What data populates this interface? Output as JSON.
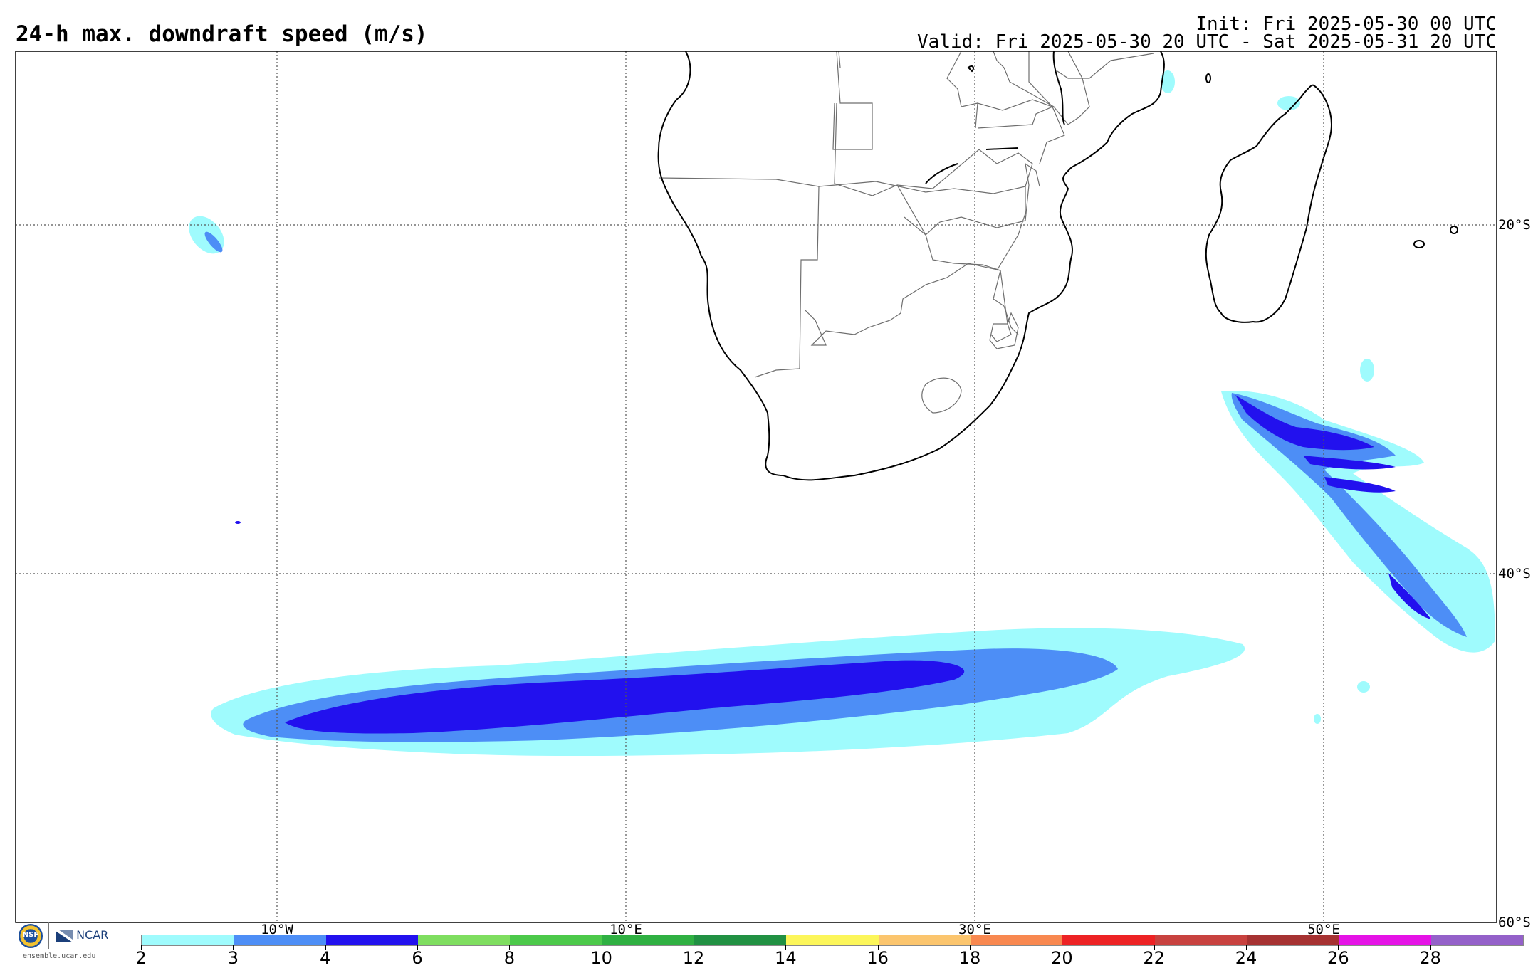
{
  "header": {
    "title": "24-h max. downdraft speed (m/s)",
    "init": "Init: Fri 2025-05-30 00 UTC",
    "valid": "Valid: Fri 2025-05-30 20 UTC - Sat 2025-05-31 20 UTC"
  },
  "map": {
    "lon_labels": [
      "10°W",
      "10°E",
      "30°E",
      "50°E"
    ],
    "lat_labels": [
      "20°S",
      "40°S",
      "60°S"
    ],
    "coast_color": "#000000",
    "border_color": "#6e6e6e",
    "grid_style": "dotted"
  },
  "legend": {
    "levels": [
      "2",
      "3",
      "4",
      "6",
      "8",
      "10",
      "12",
      "14",
      "16",
      "18",
      "20",
      "22",
      "24",
      "26",
      "28"
    ],
    "colors": [
      "#9ffbfd",
      "#4d8ef6",
      "#2211ee",
      "#7fde60",
      "#4cc94a",
      "#2fb042",
      "#219143",
      "#fcf65a",
      "#fbc56e",
      "#f88850",
      "#ed2224",
      "#c8423f",
      "#a63232",
      "#e513e6",
      "#9461c9"
    ]
  },
  "logos": {
    "seal_text": "NSF",
    "org_name": "NCAR",
    "url": "ensemble.ucar.edu"
  }
}
